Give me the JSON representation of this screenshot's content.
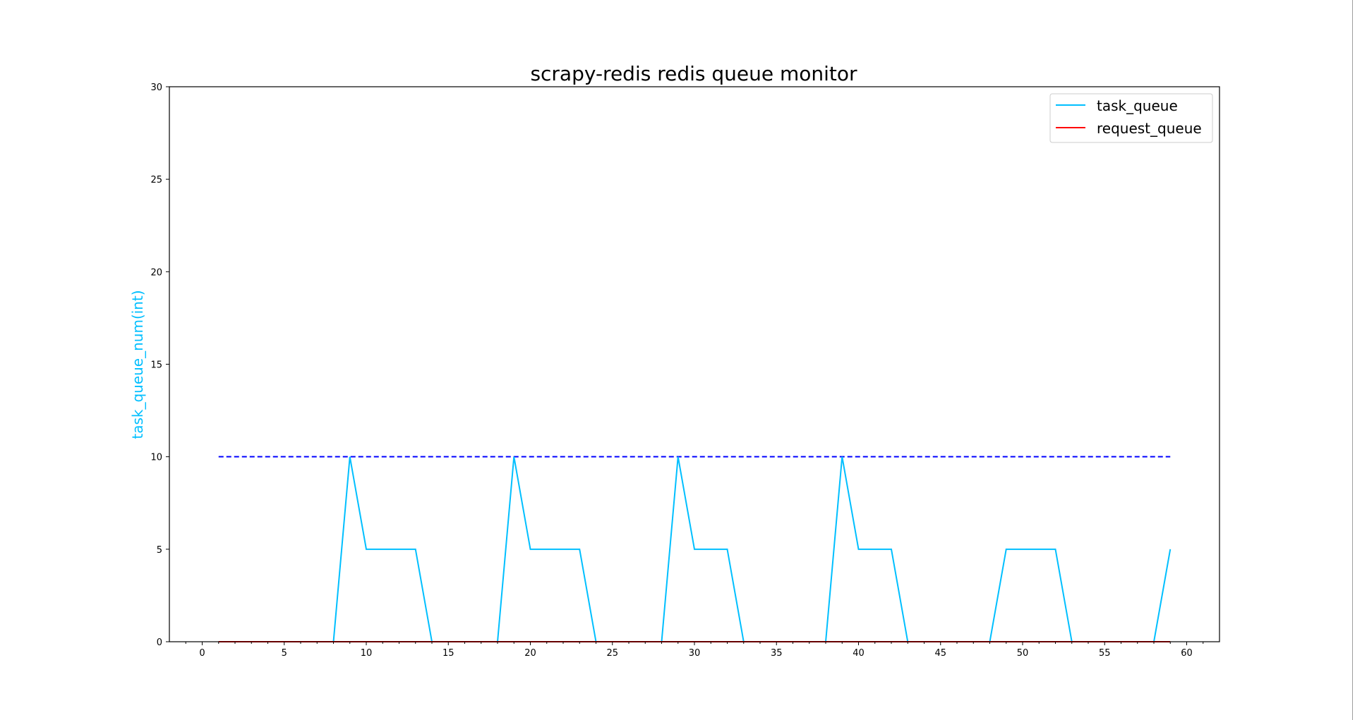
{
  "chart_data": {
    "type": "line",
    "title": "scrapy-redis redis queue monitor",
    "xlabel": "",
    "ylabel": "task_queue_num(int)",
    "xlim": [
      -2,
      62
    ],
    "ylim": [
      0,
      30
    ],
    "xticks": [
      "0",
      "5",
      "10",
      "15",
      "20",
      "25",
      "30",
      "35",
      "40",
      "45",
      "50",
      "55",
      "60"
    ],
    "yticks": [
      "0",
      "5",
      "10",
      "15",
      "20",
      "25",
      "30"
    ],
    "grid": false,
    "legend_position": "upper right",
    "series": [
      {
        "name": "task_queue",
        "color": "#00bfff",
        "style": "solid",
        "x": [
          1,
          2,
          3,
          4,
          5,
          6,
          7,
          8,
          9,
          10,
          11,
          12,
          13,
          14,
          15,
          16,
          17,
          18,
          19,
          20,
          21,
          22,
          23,
          24,
          25,
          26,
          27,
          28,
          29,
          30,
          31,
          32,
          33,
          34,
          35,
          36,
          37,
          38,
          39,
          40,
          41,
          42,
          43,
          44,
          45,
          46,
          47,
          48,
          49,
          50,
          51,
          52,
          53,
          54,
          55,
          56,
          57,
          58,
          59
        ],
        "values": [
          0,
          0,
          0,
          0,
          0,
          0,
          0,
          0,
          10,
          5,
          5,
          5,
          5,
          0,
          0,
          0,
          0,
          0,
          10,
          5,
          5,
          5,
          5,
          0,
          0,
          0,
          0,
          0,
          10,
          5,
          5,
          5,
          0,
          0,
          0,
          0,
          0,
          0,
          10,
          5,
          5,
          5,
          0,
          0,
          0,
          0,
          0,
          0,
          5,
          5,
          5,
          5,
          0,
          0,
          0,
          0,
          0,
          0,
          5
        ]
      },
      {
        "name": "request_queue",
        "color": "#ff0000",
        "style": "solid",
        "x": [
          1,
          2,
          3,
          4,
          5,
          6,
          7,
          8,
          9,
          10,
          11,
          12,
          13,
          14,
          15,
          16,
          17,
          18,
          19,
          20,
          21,
          22,
          23,
          24,
          25,
          26,
          27,
          28,
          29,
          30,
          31,
          32,
          33,
          34,
          35,
          36,
          37,
          38,
          39,
          40,
          41,
          42,
          43,
          44,
          45,
          46,
          47,
          48,
          49,
          50,
          51,
          52,
          53,
          54,
          55,
          56,
          57,
          58,
          59
        ],
        "values": [
          0,
          0,
          0,
          0,
          0,
          0,
          0,
          0,
          0,
          0,
          0,
          0,
          0,
          0,
          0,
          0,
          0,
          0,
          0,
          0,
          0,
          0,
          0,
          0,
          0,
          0,
          0,
          0,
          0,
          0,
          0,
          0,
          0,
          0,
          0,
          0,
          0,
          0,
          0,
          0,
          0,
          0,
          0,
          0,
          0,
          0,
          0,
          0,
          0,
          0,
          0,
          0,
          0,
          0,
          0,
          0,
          0,
          0,
          0
        ]
      }
    ],
    "reference_line": {
      "x": [
        1,
        59
      ],
      "values": [
        10,
        10
      ],
      "color": "#0000ff",
      "style": "dashed"
    },
    "ylabel_color": "#00bfff"
  }
}
